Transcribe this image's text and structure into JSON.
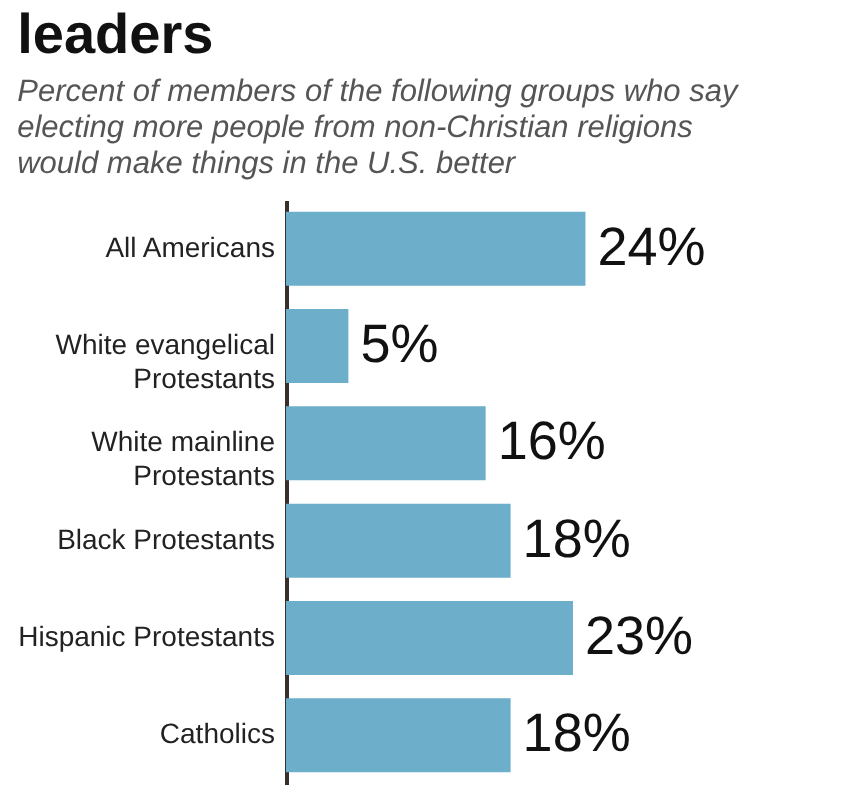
{
  "chart_data": {
    "type": "bar",
    "orientation": "horizontal",
    "title": "leaders",
    "subtitle": "Percent of members of the following groups who say electing more people from non-Christian religions would make things in the U.S. better",
    "categories": [
      "All Americans",
      "White evangelical Protestants",
      "White mainline Protestants",
      "Black Protestants",
      "Hispanic Protestants",
      "Catholics"
    ],
    "values": [
      24,
      5,
      16,
      18,
      23,
      18
    ],
    "color": "#6daeca",
    "data_labels": true,
    "value_labels": [
      "24%",
      "5%",
      "16%",
      "18%",
      "23%",
      "18%"
    ]
  }
}
